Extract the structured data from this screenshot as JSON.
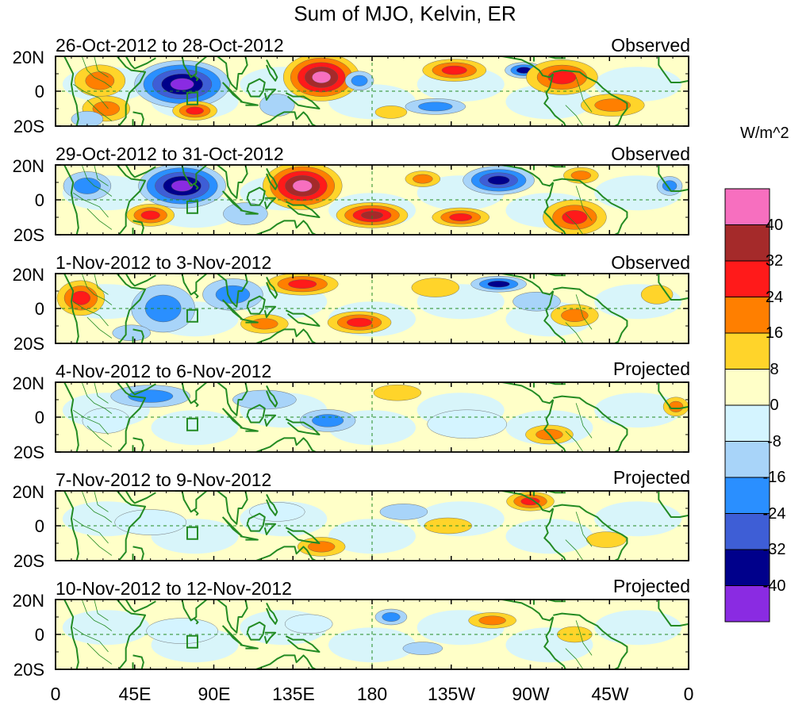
{
  "title": "Sum of MJO, Kelvin, ER",
  "units_label": "W/m^2",
  "y_tick_labels": [
    "20N",
    "0",
    "20S"
  ],
  "x_tick_labels": [
    "0",
    "45E",
    "90E",
    "135E",
    "180",
    "135W",
    "90W",
    "45W",
    "0"
  ],
  "panels": [
    {
      "date_range": "26-Oct-2012 to 28-Oct-2012",
      "status": "Observed"
    },
    {
      "date_range": "29-Oct-2012 to 31-Oct-2012",
      "status": "Observed"
    },
    {
      "date_range": "1-Nov-2012 to 3-Nov-2012",
      "status": "Observed"
    },
    {
      "date_range": "4-Nov-2012 to 6-Nov-2012",
      "status": "Projected"
    },
    {
      "date_range": "7-Nov-2012 to 9-Nov-2012",
      "status": "Projected"
    },
    {
      "date_range": "10-Nov-2012 to 12-Nov-2012",
      "status": "Projected"
    }
  ],
  "colorbar": {
    "colors": [
      "#f76fbf",
      "#a52a2a",
      "#ff1a1a",
      "#ff7f00",
      "#ffd42a",
      "#ffffc8",
      "#d4f4ff",
      "#a8d4f9",
      "#2a8fff",
      "#3e5ed6",
      "#00008b",
      "#8a2be2"
    ],
    "labels": [
      "40",
      "32",
      "24",
      "16",
      "8",
      "0",
      "-8",
      "-16",
      "-24",
      "-32",
      "-40"
    ]
  },
  "map_layers": {
    "coastline_color": "#238b23",
    "reference_line_color": "#238b23"
  }
}
